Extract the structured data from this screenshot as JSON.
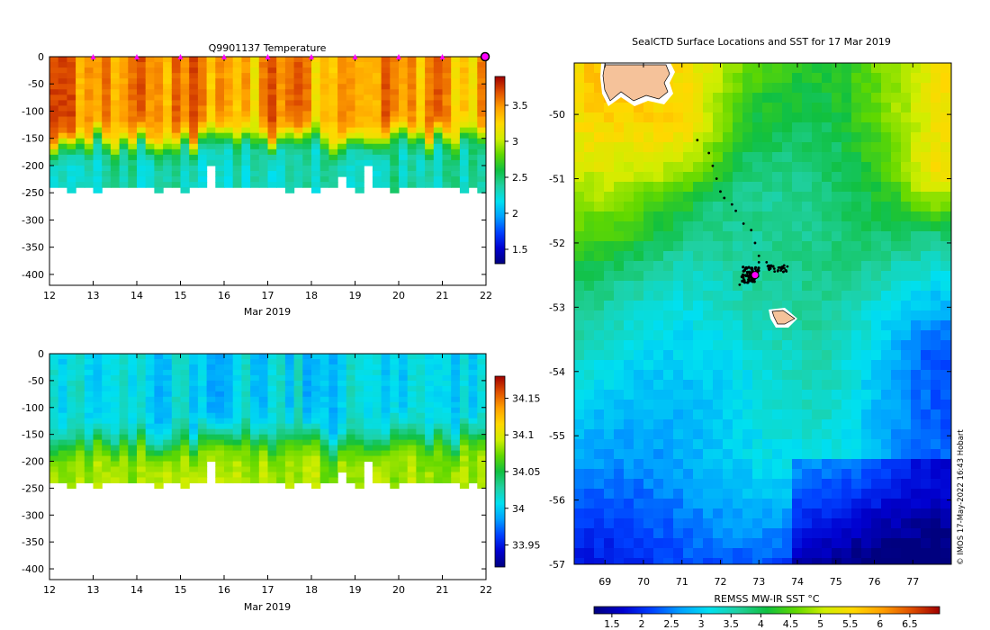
{
  "colors": {
    "cmap": [
      "#00007f",
      "#0000d0",
      "#0040ff",
      "#00a0ff",
      "#00e0f0",
      "#20d0a0",
      "#10c040",
      "#60d800",
      "#d0ee00",
      "#ffd800",
      "#ffa000",
      "#e05000",
      "#a00000"
    ],
    "land": "#f5c29a",
    "platform_marker": "#ff00ff",
    "track": "#000000"
  },
  "chart_data": [
    {
      "type": "heatmap",
      "name": "temperature-section",
      "title": "Q9901137  Temperature",
      "xlabel": "Mar 2019",
      "ylabel": "",
      "xlim": [
        12,
        22
      ],
      "ylim": [
        -420,
        0
      ],
      "xticks": [
        "12",
        "13",
        "14",
        "15",
        "16",
        "17",
        "18",
        "19",
        "20",
        "21",
        "22"
      ],
      "yticks": [
        "0",
        "-50",
        "-100",
        "-150",
        "-200",
        "-250",
        "-300",
        "-350",
        "-400"
      ],
      "colorbar": {
        "range": [
          1.3,
          3.9
        ],
        "ticks": [
          "1.5",
          "2",
          "2.5",
          "3",
          "3.5"
        ]
      },
      "profile_days": [
        13,
        14,
        15,
        16,
        17,
        18,
        19,
        20,
        21
      ],
      "latest_marker_day": 22,
      "profiles": {
        "count": 50,
        "max_depth_m": [
          240,
          240,
          245,
          240,
          240,
          245,
          240,
          240,
          240,
          240,
          240,
          240,
          245,
          240,
          240,
          245,
          240,
          240,
          200,
          240,
          240,
          240,
          240,
          240,
          240,
          240,
          240,
          245,
          240,
          240,
          245,
          240,
          240,
          220,
          240,
          245,
          200,
          240,
          240,
          245,
          240,
          240,
          240,
          240,
          240,
          240,
          240,
          245,
          240,
          245
        ],
        "surface_value": 3.7,
        "deep_value": 2.3,
        "thermocline_m": 150
      }
    },
    {
      "type": "heatmap",
      "name": "salinity-section",
      "title": "",
      "xlabel": "Mar 2019",
      "ylabel": "",
      "xlim": [
        12,
        22
      ],
      "ylim": [
        -420,
        0
      ],
      "xticks": [
        "12",
        "13",
        "14",
        "15",
        "16",
        "17",
        "18",
        "19",
        "20",
        "21",
        "22"
      ],
      "yticks": [
        "0",
        "-50",
        "-100",
        "-150",
        "-200",
        "-250",
        "-300",
        "-350",
        "-400"
      ],
      "colorbar": {
        "range": [
          33.92,
          34.18
        ],
        "ticks": [
          "33.95",
          "34",
          "34.05",
          "34.1",
          "34.15"
        ]
      },
      "profiles": {
        "surface_value": 34.0,
        "deep_value": 34.08,
        "halocline_m": 160
      }
    },
    {
      "type": "heatmap",
      "name": "sst-map",
      "title": "SealCTD Surface Locations and SST for 17 Mar 2019",
      "xlabel": "REMSS MW-IR SST °C",
      "xlim": [
        68.2,
        78
      ],
      "ylim": [
        -57,
        -49.2
      ],
      "xticks": [
        "69",
        "70",
        "71",
        "72",
        "73",
        "74",
        "75",
        "76",
        "77"
      ],
      "yticks": [
        "-50",
        "-51",
        "-52",
        "-53",
        "-54",
        "-55",
        "-56",
        "-57"
      ],
      "colorbar": {
        "range": [
          1.2,
          7.0
        ],
        "ticks": [
          "1.5",
          "2",
          "2.5",
          "3",
          "3.5",
          "4",
          "4.5",
          "5",
          "5.5",
          "6",
          "6.5"
        ]
      },
      "track_points": [
        [
          71.4,
          -50.4
        ],
        [
          71.7,
          -50.6
        ],
        [
          71.8,
          -50.8
        ],
        [
          71.9,
          -51.0
        ],
        [
          72.0,
          -51.2
        ],
        [
          72.1,
          -51.3
        ],
        [
          72.3,
          -51.4
        ],
        [
          72.4,
          -51.5
        ],
        [
          72.6,
          -51.7
        ],
        [
          72.8,
          -51.8
        ],
        [
          72.9,
          -52.0
        ],
        [
          73.0,
          -52.2
        ],
        [
          73.0,
          -52.3
        ],
        [
          73.2,
          -52.3
        ],
        [
          73.4,
          -52.4
        ],
        [
          73.6,
          -52.4
        ],
        [
          73.3,
          -52.4
        ],
        [
          72.8,
          -52.4
        ],
        [
          72.7,
          -52.5
        ],
        [
          72.6,
          -52.55
        ],
        [
          72.6,
          -52.6
        ],
        [
          72.5,
          -52.65
        ],
        [
          72.75,
          -52.45
        ],
        [
          72.9,
          -52.4
        ]
      ],
      "latest_position": [
        72.9,
        -52.5
      ],
      "credit": "© IMOS 17-May-2022 16:43 Hobart"
    }
  ]
}
